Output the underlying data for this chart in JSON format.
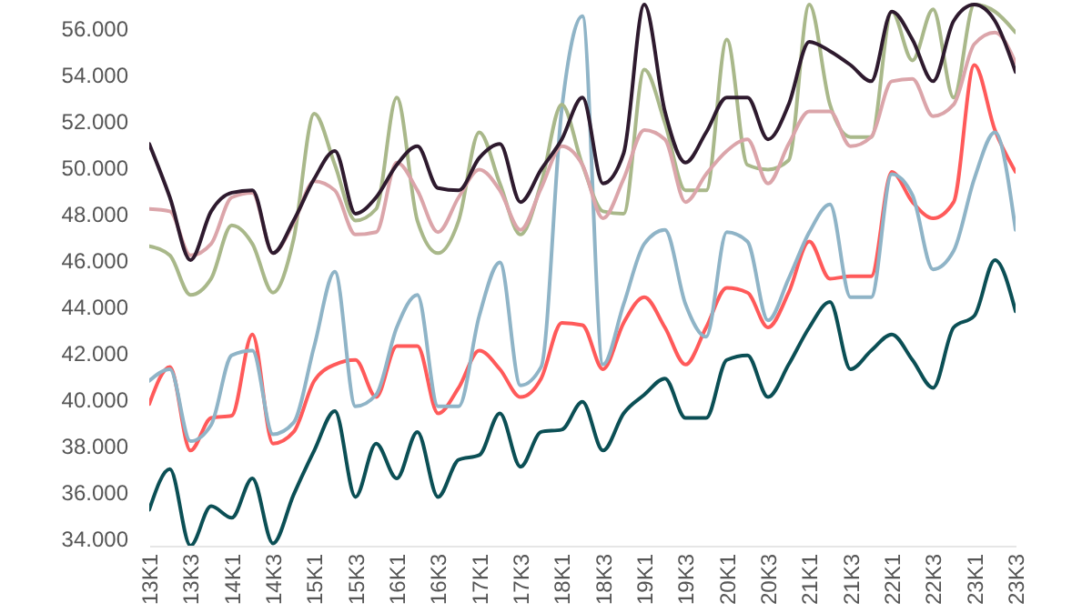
{
  "chart_data": {
    "type": "line",
    "categories": [
      "13K1",
      null,
      "13K3",
      null,
      "14K1",
      null,
      "14K3",
      null,
      "15K1",
      null,
      "15K3",
      null,
      "16K1",
      null,
      "16K3",
      null,
      "17K1",
      null,
      "17K3",
      null,
      "18K1",
      null,
      "18K3",
      null,
      "19K1",
      null,
      "19K3",
      null,
      "20K1",
      null,
      "20K3",
      null,
      "21K1",
      null,
      "21K3",
      null,
      "22K1",
      null,
      "22K3",
      null,
      "23K1",
      null,
      "23K3"
    ],
    "series": [
      {
        "color": "#0b4f55",
        "values": [
          35250,
          37000,
          33700,
          35400,
          34900,
          36600,
          33800,
          35900,
          37800,
          39500,
          35800,
          38100,
          36600,
          38600,
          35800,
          37400,
          37600,
          39400,
          37100,
          38600,
          38700,
          39900,
          37800,
          39400,
          40200,
          40900,
          39200,
          39200,
          41700,
          41900,
          40100,
          41500,
          43100,
          44200,
          41300,
          42100,
          42800,
          41700,
          40500,
          43100,
          43600,
          46000,
          43800
        ]
      },
      {
        "color": "#ff5a5a",
        "values": [
          39800,
          41400,
          37800,
          39200,
          39300,
          42800,
          38100,
          38600,
          40800,
          41500,
          41700,
          40100,
          42300,
          42300,
          39400,
          40500,
          42100,
          41300,
          40100,
          40900,
          43300,
          43200,
          41300,
          43300,
          44400,
          43100,
          41500,
          43100,
          44800,
          44600,
          43100,
          44600,
          46800,
          45200,
          45300,
          45300,
          49800,
          48500,
          47800,
          48500,
          54400,
          51600,
          49800
        ]
      },
      {
        "color": "#8fb4c7",
        "values": [
          40800,
          41300,
          38200,
          38900,
          41900,
          42100,
          38500,
          39000,
          42300,
          45500,
          39700,
          40200,
          43100,
          44500,
          39700,
          39700,
          43600,
          45900,
          40600,
          41400,
          52500,
          56500,
          41500,
          44100,
          46700,
          47300,
          44100,
          42700,
          47200,
          46800,
          43400,
          45200,
          47200,
          48400,
          44400,
          44400,
          49700,
          48800,
          45600,
          46400,
          49500,
          51500,
          47300
        ]
      },
      {
        "color": "#a9b88a",
        "values": [
          46600,
          46200,
          44500,
          45200,
          47500,
          46700,
          44600,
          46900,
          52300,
          50100,
          47700,
          48200,
          53000,
          47700,
          46300,
          47700,
          51500,
          49300,
          47100,
          49300,
          52700,
          50100,
          48100,
          48000,
          54200,
          51900,
          49000,
          49000,
          55500,
          50100,
          49900,
          50300,
          57000,
          52700,
          51300,
          51300,
          56700,
          54600,
          56800,
          53000,
          57000,
          56700,
          55800
        ]
      },
      {
        "color": "#dba5aa",
        "values": [
          48200,
          48100,
          46200,
          46700,
          48700,
          48900,
          46300,
          47600,
          49400,
          49000,
          47100,
          47200,
          50200,
          49000,
          47200,
          48700,
          49900,
          49000,
          47300,
          49100,
          50900,
          50100,
          47800,
          49500,
          51600,
          51200,
          48500,
          49700,
          50700,
          51200,
          49300,
          51000,
          52400,
          52400,
          50900,
          51300,
          53700,
          53800,
          52200,
          52700,
          55300,
          55800,
          54500
        ]
      },
      {
        "color": "#2e1a2e",
        "values": [
          51000,
          48700,
          46000,
          48100,
          48900,
          49000,
          46300,
          47700,
          49500,
          50700,
          48000,
          48700,
          50100,
          50900,
          49100,
          49000,
          50400,
          51000,
          48500,
          49900,
          51200,
          53000,
          49300,
          50600,
          57000,
          52400,
          50200,
          51500,
          53000,
          53000,
          51200,
          52700,
          55400,
          55000,
          54400,
          53700,
          56700,
          55500,
          53700,
          56300,
          57000,
          56300,
          54100
        ]
      }
    ],
    "ylim": [
      33700,
      57200
    ],
    "yticks": [
      {
        "value": 34000,
        "label": "34.000"
      },
      {
        "value": 36000,
        "label": "36.000"
      },
      {
        "value": 38000,
        "label": "38.000"
      },
      {
        "value": 40000,
        "label": "40.000"
      },
      {
        "value": 42000,
        "label": "42.000"
      },
      {
        "value": 44000,
        "label": "44.000"
      },
      {
        "value": 46000,
        "label": "46.000"
      },
      {
        "value": 48000,
        "label": "48.000"
      },
      {
        "value": 50000,
        "label": "50.000"
      },
      {
        "value": 52000,
        "label": "52.000"
      },
      {
        "value": 54000,
        "label": "54.000"
      },
      {
        "value": 56000,
        "label": "56.000"
      }
    ],
    "grid": false
  }
}
